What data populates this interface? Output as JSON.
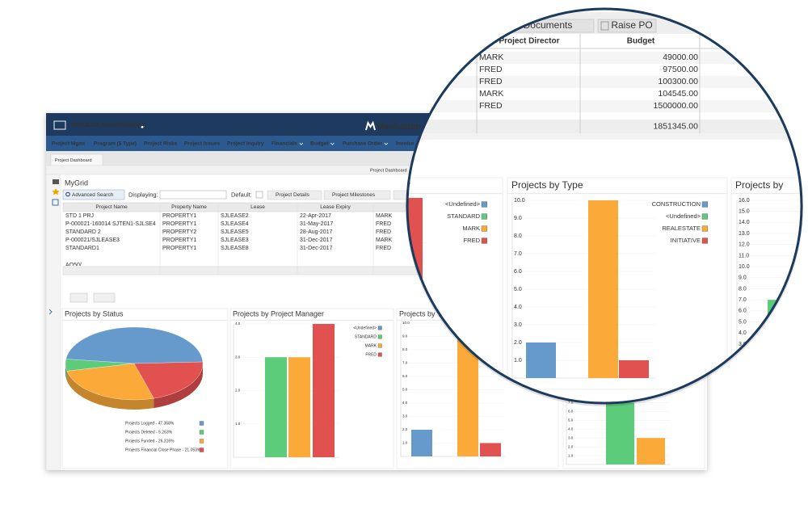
{
  "app": {
    "menu": "PROJECT MANAGEMENT",
    "brand": "Manhattan",
    "nav": [
      "Project Mgmt",
      "Program ($ Type)",
      "Project Risks",
      "Project Issues",
      "Project Inquiry",
      "Financials",
      "Budget",
      "Purchase Order",
      "Invoice"
    ],
    "tab": "Project Dashboard",
    "breadcrumb": "Project Dashboard"
  },
  "grid": {
    "title": "MyGrid",
    "advanced_search": "Advanced Search",
    "displaying": "Displaying:",
    "default": "Default:",
    "buttons": [
      "Project Details",
      "Project Milestones"
    ],
    "columns": [
      "Project Name",
      "Property Name",
      "Lease",
      "Lease Expiry",
      "Proj"
    ],
    "rows": [
      [
        "STD 1 PRJ",
        "PROPERTY1",
        "SJLEASE2",
        "22-Apr-2017",
        "MARK"
      ],
      [
        "P-000021-160014 SJTEN1-SJLSE4",
        "PROPERTY1",
        "SJLEASE4",
        "31-May-2017",
        "FRED"
      ],
      [
        "STANDARD 2",
        "PROPERTY2",
        "SJLEASE5",
        "28-Aug-2017",
        "FRED"
      ],
      [
        "P-000021/SJLEASE3",
        "PROPERTY1",
        "SJLEASE3",
        "31-Dec-2017",
        "MARK"
      ],
      [
        "STANDARD1",
        "PROPERTY1",
        "SJLEASE8",
        "31-Dec-2017",
        "FRED"
      ]
    ],
    "partial_row": "AO50/"
  },
  "zoom": {
    "buttons": [
      "Documents",
      "Raise PO"
    ],
    "columns": [
      "Project Director",
      "Budget"
    ],
    "rows": [
      [
        "MARK",
        "49000.00"
      ],
      [
        "FRED",
        "97500.00"
      ],
      [
        "FRED",
        "100300.00"
      ],
      [
        "MARK",
        "104545.00"
      ],
      [
        "FRED",
        "1500000.00"
      ]
    ],
    "total": "1851345.00"
  },
  "chart_data": [
    {
      "type": "pie",
      "title": "Projects by Status",
      "labels": [
        "Projects Logged - 47.368%",
        "Projects Deleted - 5.263%",
        "Projects Funded - 26.316%",
        "Projects Financial Close Phase - 21.053%"
      ],
      "values": [
        47.368,
        5.263,
        26.316,
        21.053
      ],
      "colors": [
        "#6699cc",
        "#5ccc7a",
        "#fbaa3a",
        "#e0514f"
      ]
    },
    {
      "type": "bar",
      "title": "Projects by Project Manager",
      "categories": [
        "<Undefined>",
        "STANDARD",
        "MARK",
        "FRED"
      ],
      "values": [
        0,
        3,
        3,
        4
      ],
      "colors": [
        "#6699cc",
        "#5ccc7a",
        "#fbaa3a",
        "#e0514f"
      ],
      "ylim": [
        0,
        4
      ],
      "yticks": [
        {
          "value": 1,
          "label": "1.0"
        },
        {
          "value": 2,
          "label": "2.0"
        },
        {
          "value": 3,
          "label": "3.0"
        },
        {
          "value": 4,
          "label": "4.0"
        }
      ]
    },
    {
      "type": "bar",
      "title": "Projects by Type",
      "categories": [
        "CONSTRUCTION",
        "<Undefined>",
        "REALESTATE",
        "INITIATIVE"
      ],
      "values": [
        2,
        0,
        10,
        1
      ],
      "colors": [
        "#6699cc",
        "#5ccc7a",
        "#fbaa3a",
        "#e0514f"
      ],
      "ylim": [
        0,
        10
      ],
      "yticks": [
        {
          "value": 1,
          "label": "1.0"
        },
        {
          "value": 2,
          "label": "2.0"
        },
        {
          "value": 3,
          "label": "3.0"
        },
        {
          "value": 4,
          "label": "4.0"
        },
        {
          "value": 5,
          "label": "5.0"
        },
        {
          "value": 6,
          "label": "6.0"
        },
        {
          "value": 7,
          "label": "7.0"
        },
        {
          "value": 8,
          "label": "8.0"
        },
        {
          "value": 9,
          "label": "9.0"
        },
        {
          "value": 10,
          "label": "10.0"
        }
      ]
    },
    {
      "type": "bar",
      "title": "Projects by",
      "values": [
        7,
        3
      ],
      "colors": [
        "#5ccc7a",
        "#fbaa3a"
      ],
      "ylim": [
        0,
        16
      ],
      "yticks": [
        {
          "value": 1,
          "label": "1.0"
        },
        {
          "value": 2,
          "label": "2.0"
        },
        {
          "value": 3,
          "label": "3.0"
        },
        {
          "value": 4,
          "label": "4.0"
        },
        {
          "value": 5,
          "label": "5.0"
        },
        {
          "value": 6,
          "label": "6.0"
        },
        {
          "value": 7,
          "label": "7.0"
        },
        {
          "value": 8,
          "label": "8.0"
        },
        {
          "value": 9,
          "label": "9.0"
        },
        {
          "value": 10,
          "label": "10.0"
        },
        {
          "value": 11,
          "label": "11.0"
        },
        {
          "value": 12,
          "label": "12.0"
        },
        {
          "value": 13,
          "label": "13.0"
        },
        {
          "value": 14,
          "label": "14.0"
        },
        {
          "value": 15,
          "label": "15.0"
        },
        {
          "value": 16,
          "label": "16.0"
        }
      ]
    }
  ]
}
